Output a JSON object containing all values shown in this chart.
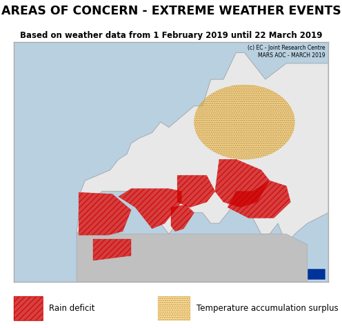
{
  "title": "AREAS OF CONCERN - EXTREME WEATHER EVENTS",
  "subtitle": "Based on weather data from 1 February 2019 until 22 March 2019",
  "copyright_text": "(c) EC - Joint Research Centre\nMARS AOC - MARCH 2019",
  "legend_rain": "Rain deficit",
  "legend_temp": "Temperature accumulation surplus",
  "map_bg_color": "#c8dce8",
  "land_color": "#e8e8e8",
  "sea_color": "#b8d0e0",
  "border_color": "#999999",
  "hatch_color_rain": "#cc0000",
  "fill_color_rain": "#cc0000",
  "hatch_color_temp": "#d4900a",
  "fill_color_temp": "#e8b84b",
  "title_fontsize": 12.5,
  "subtitle_fontsize": 8.5,
  "copyright_fontsize": 5.5,
  "map_extent": [
    -25,
    50,
    27,
    72
  ],
  "fig_width": 4.96,
  "fig_height": 4.77,
  "outer_border_color": "#aaaaaa",
  "outer_border_lw": 1.0
}
